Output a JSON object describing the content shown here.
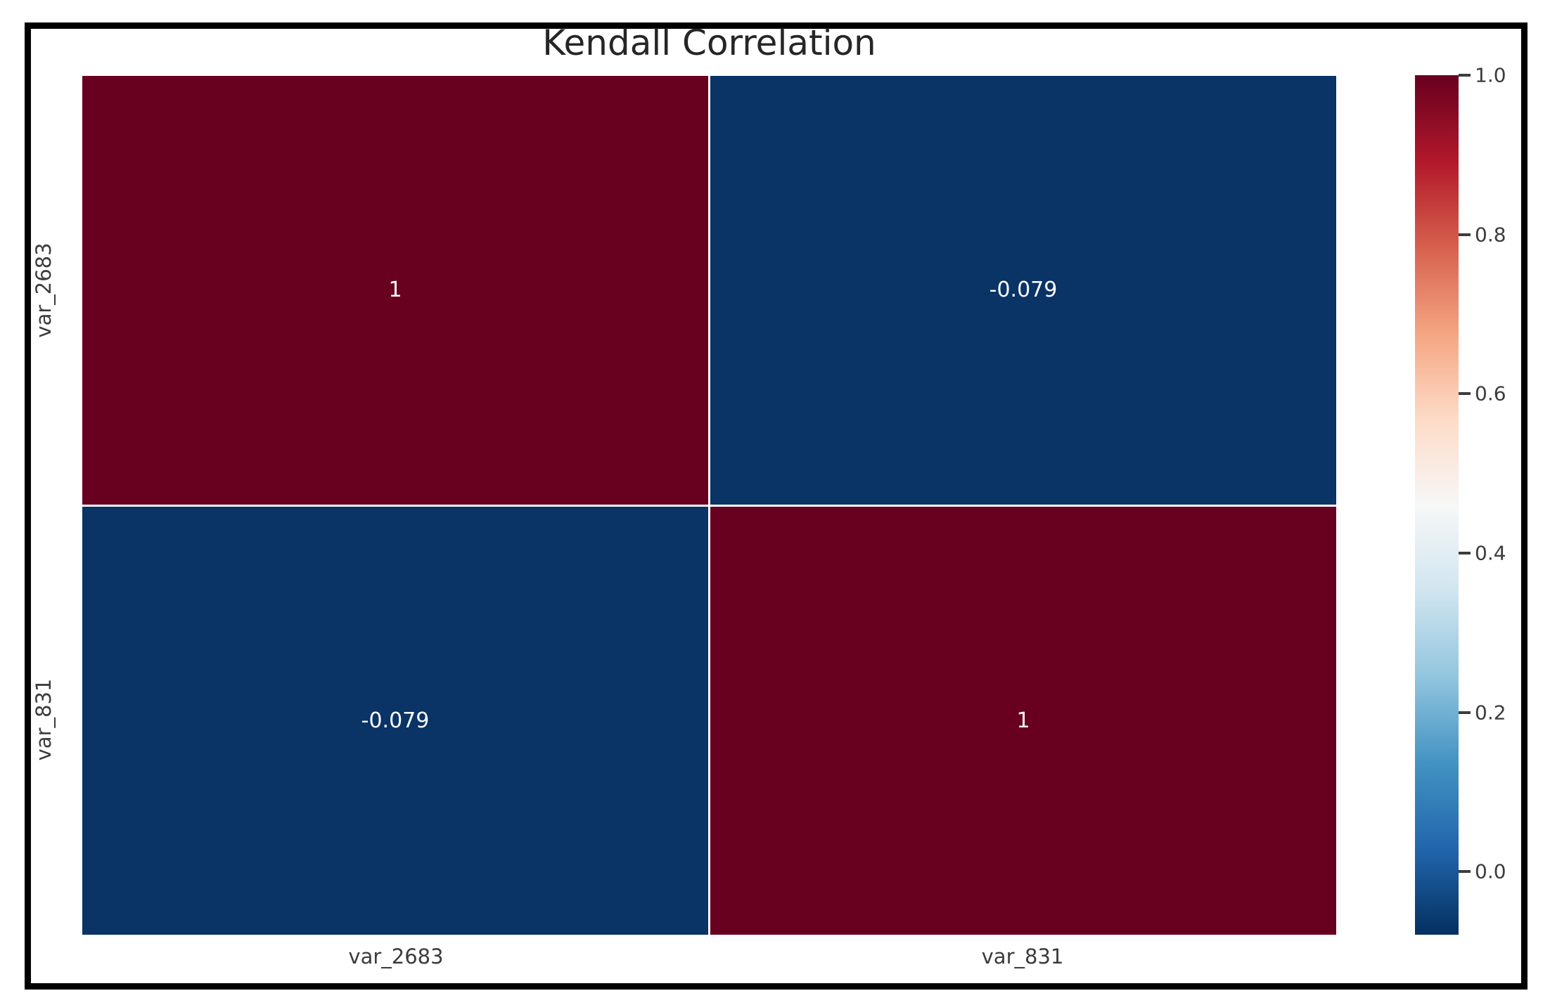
{
  "figure": {
    "background_color": "#ffffff",
    "frame_border_color": "#000000",
    "title_color": "#262626",
    "tick_label_color": "#3c3c3c"
  },
  "chart_data": {
    "type": "heatmap",
    "title": "Kendall Correlation",
    "x_categories": [
      "var_2683",
      "var_831"
    ],
    "y_categories": [
      "var_2683",
      "var_831"
    ],
    "matrix": [
      [
        1,
        -0.079
      ],
      [
        -0.079,
        1
      ]
    ],
    "cell_labels": [
      [
        "1",
        "-0.079"
      ],
      [
        "-0.079",
        "1"
      ]
    ],
    "cell_colors": [
      [
        "#68011f",
        "#0a3366"
      ],
      [
        "#0a3366",
        "#68011f"
      ]
    ],
    "annotation_color": "#ffffff",
    "grid": false,
    "colormap": "RdBu_r",
    "colorbar": {
      "position": "right",
      "vmin": -0.079,
      "vmax": 1.0,
      "tick_labels": [
        "1.0",
        "0.8",
        "0.6",
        "0.4",
        "0.2",
        "0.0"
      ],
      "tick_values": [
        1.0,
        0.8,
        0.6,
        0.4,
        0.2,
        0.0
      ],
      "gradient_stops_top_to_bottom": [
        "#67001f",
        "#b2182b",
        "#d6604d",
        "#f4a582",
        "#fddbc7",
        "#f7f7f7",
        "#d1e5f0",
        "#92c5de",
        "#4393c3",
        "#2166ac",
        "#053061"
      ]
    }
  }
}
